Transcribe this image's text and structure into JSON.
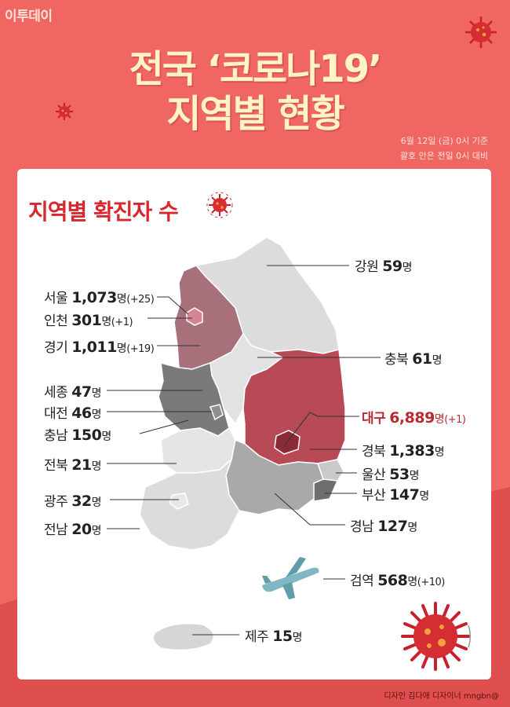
{
  "brand": {
    "logo": "이투데이"
  },
  "title": {
    "line1": "전국 ‘코로나19’",
    "line2": "지역별 현황"
  },
  "date": {
    "line1": "6월 12일 (금) 0시 기준",
    "line2": "괄호 안은 전일 0시 대비"
  },
  "card": {
    "title": "지역별 확진자 수"
  },
  "regions": [
    {
      "name": "강원",
      "count": "59",
      "unit": "명",
      "delta": ""
    },
    {
      "name": "서울",
      "count": "1,073",
      "unit": "명",
      "delta": "(+25)"
    },
    {
      "name": "인천",
      "count": "301",
      "unit": "명",
      "delta": "(+1)"
    },
    {
      "name": "경기",
      "count": "1,011",
      "unit": "명",
      "delta": "(+19)"
    },
    {
      "name": "충북",
      "count": "61",
      "unit": "명",
      "delta": ""
    },
    {
      "name": "세종",
      "count": "47",
      "unit": "명",
      "delta": ""
    },
    {
      "name": "대전",
      "count": "46",
      "unit": "명",
      "delta": ""
    },
    {
      "name": "대구",
      "count": "6,889",
      "unit": "명",
      "delta": "(+1)"
    },
    {
      "name": "충남",
      "count": "150",
      "unit": "명",
      "delta": ""
    },
    {
      "name": "경북",
      "count": "1,383",
      "unit": "명",
      "delta": ""
    },
    {
      "name": "전북",
      "count": "21",
      "unit": "명",
      "delta": ""
    },
    {
      "name": "울산",
      "count": "53",
      "unit": "명",
      "delta": ""
    },
    {
      "name": "부산",
      "count": "147",
      "unit": "명",
      "delta": ""
    },
    {
      "name": "광주",
      "count": "32",
      "unit": "명",
      "delta": ""
    },
    {
      "name": "경남",
      "count": "127",
      "unit": "명",
      "delta": ""
    },
    {
      "name": "전남",
      "count": "20",
      "unit": "명",
      "delta": ""
    },
    {
      "name": "검역",
      "count": "568",
      "unit": "명",
      "delta": "(+10)"
    },
    {
      "name": "제주",
      "count": "15",
      "unit": "명",
      "delta": ""
    }
  ],
  "credit": "디자인 김다애 디자이너 mngbn@",
  "colors": {
    "background": "#ef6663",
    "title": "#fff3c9",
    "accent": "#d9272e",
    "daegu": "#b84a55",
    "gyeonggi": "#a8707b",
    "chungnam": "#7a7a7a"
  },
  "icons": [
    "virus-icon",
    "airplane-icon"
  ]
}
